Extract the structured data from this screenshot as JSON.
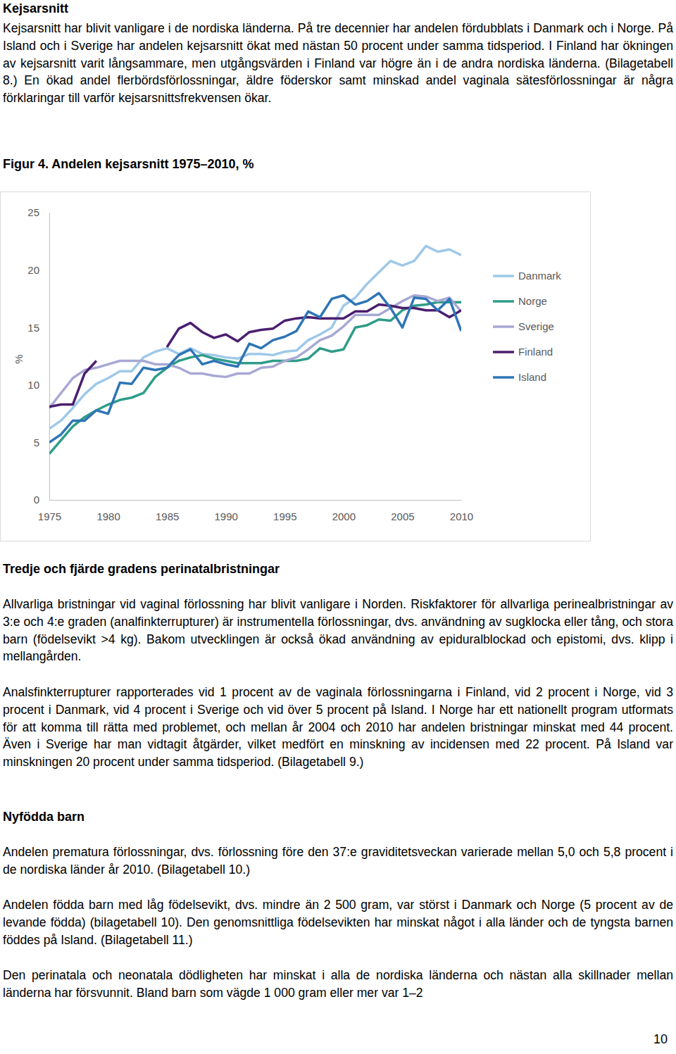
{
  "section1": {
    "heading": "Kejsarsnitt",
    "paragraph": "Kejsarsnitt har blivit vanligare i de nordiska länderna. På tre decennier har andelen fördubblats i Danmark och i Norge. På Island och i Sverige har andelen kejsarsnitt ökat med nästan 50 procent under samma tidsperiod. I Finland har ökningen av kejsarsnitt varit långsammare, men utgångsvärden i Finland var högre än i de andra nordiska länderna. (Bilagetabell 8.) En ökad andel flerbördsförlossningar, äldre föderskor samt minskad andel vaginala sätesförlossningar är några förklaringar till varför kejsarsnittsfrekvensen ökar."
  },
  "chart_data": {
    "type": "line",
    "title": "Figur 4. Andelen kejsarsnitt 1975–2010, %",
    "y_label": "%",
    "x": [
      1975,
      1976,
      1977,
      1978,
      1979,
      1980,
      1981,
      1982,
      1983,
      1984,
      1985,
      1986,
      1987,
      1988,
      1989,
      1990,
      1991,
      1992,
      1993,
      1994,
      1995,
      1996,
      1997,
      1998,
      1999,
      2000,
      2001,
      2002,
      2003,
      2004,
      2005,
      2006,
      2007,
      2008,
      2009,
      2010
    ],
    "xlim": [
      1975,
      2010
    ],
    "xticks": [
      1975,
      1980,
      1985,
      1990,
      1995,
      2000,
      2005,
      2010
    ],
    "ylim": [
      0,
      25
    ],
    "yticks": [
      0,
      5,
      10,
      15,
      20,
      25
    ],
    "grid": false,
    "legend": "right",
    "series": [
      {
        "name": "Danmark",
        "color": "#9fc8e8",
        "values": [
          6.2,
          6.9,
          8.0,
          9.2,
          10.1,
          10.6,
          11.2,
          11.2,
          12.4,
          12.9,
          13.2,
          12.7,
          13.2,
          12.7,
          12.6,
          12.4,
          12.3,
          12.7,
          12.7,
          12.6,
          12.9,
          13.0,
          13.9,
          14.4,
          15.0,
          16.9,
          17.6,
          18.8,
          19.8,
          20.8,
          20.4,
          20.8,
          22.1,
          21.6,
          21.8,
          21.3
        ]
      },
      {
        "name": "Norge",
        "color": "#2f9c89",
        "values": [
          4.0,
          5.2,
          6.4,
          7.2,
          7.8,
          8.3,
          8.7,
          8.9,
          9.3,
          10.7,
          11.5,
          12.1,
          12.4,
          12.6,
          12.3,
          12.1,
          11.9,
          11.9,
          11.9,
          12.1,
          12.1,
          12.1,
          12.3,
          13.2,
          12.9,
          13.1,
          15.0,
          15.2,
          15.7,
          15.6,
          16.5,
          16.9,
          17.0,
          17.2,
          17.2,
          17.2
        ]
      },
      {
        "name": "Sverige",
        "color": "#a8a8d4",
        "values": [
          8.0,
          9.3,
          10.6,
          11.3,
          11.5,
          11.8,
          12.1,
          12.1,
          12.1,
          11.8,
          11.8,
          11.5,
          11.0,
          11.0,
          10.8,
          10.7,
          11.0,
          11.0,
          11.5,
          11.6,
          12.1,
          12.4,
          13.1,
          13.9,
          14.3,
          15.1,
          16.1,
          16.1,
          16.1,
          16.7,
          17.3,
          17.8,
          17.7,
          17.3,
          17.6,
          16.4
        ]
      },
      {
        "name": "Finland",
        "color": "#4b1f6f",
        "values": [
          8.1,
          8.3,
          8.3,
          11.0,
          12.1,
          null,
          null,
          null,
          null,
          null,
          13.3,
          14.9,
          15.4,
          14.6,
          14.1,
          14.4,
          13.8,
          14.6,
          14.8,
          14.9,
          15.6,
          15.8,
          15.9,
          15.8,
          15.8,
          15.8,
          16.4,
          16.4,
          17.0,
          16.9,
          16.7,
          16.7,
          16.5,
          16.5,
          15.9,
          16.5
        ]
      },
      {
        "name": "Island",
        "color": "#2e75b6",
        "values": [
          5.0,
          5.7,
          6.9,
          6.9,
          7.8,
          7.5,
          10.2,
          10.1,
          11.5,
          11.3,
          11.5,
          12.6,
          13.1,
          11.8,
          12.1,
          11.8,
          11.6,
          13.6,
          13.2,
          13.9,
          14.2,
          14.7,
          16.4,
          15.9,
          17.5,
          17.8,
          17.0,
          17.3,
          18.0,
          16.7,
          15.0,
          17.6,
          17.5,
          16.5,
          17.5,
          14.7
        ]
      }
    ]
  },
  "section2": {
    "heading": "Tredje och fjärde gradens perinatalbristningar",
    "paragraphs": [
      "Allvarliga bristningar vid vaginal förlossning har blivit vanligare i Norden. Riskfaktorer för allvarliga perinealbristningar av 3:e och 4:e graden (analfinkterrupturer) är instrumentella förlossningar, dvs. användning av sugklocka eller tång, och stora barn (födelsevikt >4 kg). Bakom utvecklingen är också ökad användning av epiduralblockad och epistomi, dvs. klipp i mellangården.",
      "Analsfinkterrupturer rapporterades vid 1 procent av de vaginala förlossningarna i Finland, vid 2 procent i Norge, vid 3 procent i Danmark, vid 4 procent i Sverige och vid över 5 procent på Island. I Norge har ett nationellt program utformats för att komma till rätta med problemet, och mellan år 2004 och 2010 har andelen bristningar minskat med 44 procent. Även i Sverige har man vidtagit åtgärder, vilket medfört en minskning av incidensen med 22 procent. På Island var minskningen 20 procent under samma tidsperiod. (Bilagetabell 9.)"
    ]
  },
  "section3": {
    "heading": "Nyfödda barn",
    "paragraphs": [
      "Andelen prematura förlossningar, dvs. förlossning före den 37:e graviditetsveckan varierade mellan 5,0 och 5,8 procent i de nordiska länder år 2010. (Bilagetabell 10.)",
      "Andelen födda barn med låg födelsevikt, dvs. mindre än 2 500 gram, var störst i Danmark och Norge (5 procent av de levande födda) (bilagetabell 10). Den genomsnittliga födelsevikten har minskat något i alla länder och de tyngsta barnen föddes på Island. (Bilagetabell 11.)",
      "Den perinatala och neonatala dödligheten har minskat i alla de nordiska länderna och nästan alla skillnader mellan länderna har försvunnit. Bland barn som vägde 1 000 gram eller mer var 1–2"
    ]
  },
  "page_number": "10"
}
